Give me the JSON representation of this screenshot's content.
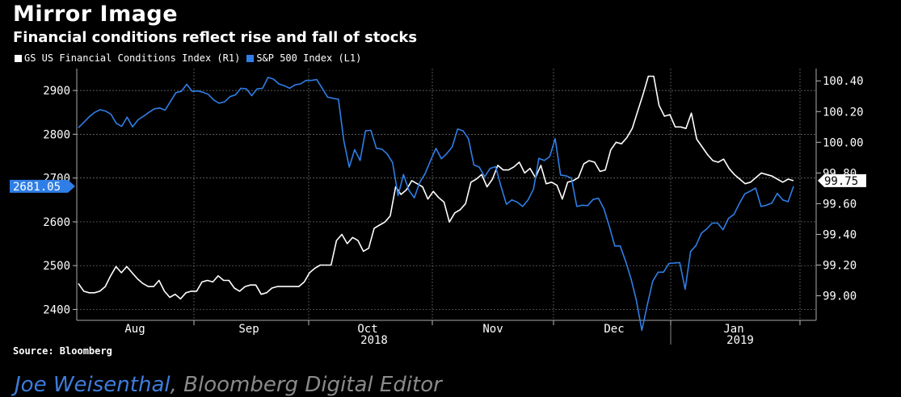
{
  "title": "Mirror Image",
  "subtitle": "Financial conditions reflect rise and fall of stocks",
  "source": "Source: Bloomberg",
  "byline": {
    "author": "Joe Weisenthal",
    "role": "Bloomberg Digital Editor"
  },
  "colors": {
    "background": "#000000",
    "spx": "#2f7ee6",
    "fci": "#ffffff",
    "grid": "#777777"
  },
  "chart_data": {
    "type": "line",
    "legend_position": "top-left",
    "grid": true,
    "x": {
      "month_labels": [
        "Aug",
        "Sep",
        "Oct",
        "Nov",
        "Dec",
        "Jan"
      ],
      "year_labels": [
        {
          "label": "2018",
          "under": "Oct"
        },
        {
          "label": "2019",
          "under": "Jan"
        }
      ]
    },
    "left_axis": {
      "ylim": [
        2375,
        2950
      ],
      "ticks": [
        2400,
        2500,
        2600,
        2700,
        2800,
        2900
      ]
    },
    "right_axis": {
      "ylim": [
        98.84,
        100.48
      ],
      "ticks": [
        "99.00",
        "99.20",
        "99.40",
        "99.60",
        "99.80",
        "100.00",
        "100.20",
        "100.40"
      ]
    },
    "series": [
      {
        "name": "GS US Financial Conditions Index (R1)",
        "axis": "right",
        "last_label": "99.75",
        "values": [
          99.08,
          99.03,
          99.02,
          99.02,
          99.03,
          99.06,
          99.13,
          99.19,
          99.15,
          99.19,
          99.15,
          99.11,
          99.08,
          99.06,
          99.06,
          99.1,
          99.03,
          98.99,
          99.01,
          98.98,
          99.02,
          99.03,
          99.03,
          99.09,
          99.1,
          99.09,
          99.13,
          99.1,
          99.1,
          99.05,
          99.03,
          99.06,
          99.07,
          99.07,
          99.01,
          99.02,
          99.05,
          99.06,
          99.06,
          99.06,
          99.06,
          99.06,
          99.09,
          99.15,
          99.18,
          99.2,
          99.2,
          99.2,
          99.36,
          99.4,
          99.34,
          99.38,
          99.36,
          99.29,
          99.31,
          99.44,
          99.46,
          99.48,
          99.52,
          99.71,
          99.66,
          99.69,
          99.75,
          99.73,
          99.71,
          99.63,
          99.68,
          99.64,
          99.61,
          99.48,
          99.54,
          99.56,
          99.6,
          99.74,
          99.76,
          99.79,
          99.71,
          99.76,
          99.85,
          99.82,
          99.82,
          99.84,
          99.87,
          99.8,
          99.83,
          99.77,
          99.85,
          99.73,
          99.74,
          99.72,
          99.63,
          99.74,
          99.75,
          99.77,
          99.86,
          99.88,
          99.87,
          99.81,
          99.82,
          99.95,
          100.0,
          99.99,
          100.03,
          100.09,
          100.2,
          100.31,
          100.43,
          100.43,
          100.24,
          100.17,
          100.18,
          100.1,
          100.1,
          100.09,
          100.19,
          100.02,
          99.97,
          99.92,
          99.88,
          99.87,
          99.89,
          99.83,
          99.79,
          99.76,
          99.73,
          99.74,
          99.77,
          99.8,
          99.79,
          99.78,
          99.76,
          99.74,
          99.76,
          99.75
        ]
      },
      {
        "name": "S&P 500 Index (L1)",
        "axis": "left",
        "last_label": "2681.05",
        "values": [
          2815,
          2827,
          2840,
          2850,
          2856,
          2853,
          2846,
          2825,
          2818,
          2839,
          2817,
          2833,
          2841,
          2850,
          2858,
          2860,
          2855,
          2875,
          2895,
          2898,
          2914,
          2898,
          2899,
          2896,
          2891,
          2878,
          2871,
          2874,
          2886,
          2890,
          2905,
          2904,
          2888,
          2904,
          2905,
          2930,
          2926,
          2915,
          2911,
          2905,
          2913,
          2915,
          2923,
          2923,
          2925,
          2905,
          2885,
          2882,
          2880,
          2785,
          2725,
          2765,
          2740,
          2808,
          2809,
          2768,
          2766,
          2755,
          2735,
          2660,
          2708,
          2672,
          2655,
          2690,
          2710,
          2740,
          2768,
          2744,
          2756,
          2771,
          2812,
          2808,
          2790,
          2730,
          2725,
          2703,
          2722,
          2726,
          2681,
          2640,
          2650,
          2645,
          2635,
          2650,
          2675,
          2745,
          2740,
          2749,
          2790,
          2707,
          2705,
          2700,
          2635,
          2638,
          2637,
          2651,
          2654,
          2630,
          2590,
          2545,
          2545,
          2510,
          2470,
          2420,
          2352,
          2410,
          2464,
          2485,
          2485,
          2505,
          2506,
          2507,
          2446,
          2532,
          2546,
          2574,
          2584,
          2597,
          2597,
          2582,
          2608,
          2617,
          2642,
          2664,
          2670,
          2677,
          2635,
          2638,
          2643,
          2665,
          2650,
          2646,
          2681.05
        ]
      }
    ]
  }
}
